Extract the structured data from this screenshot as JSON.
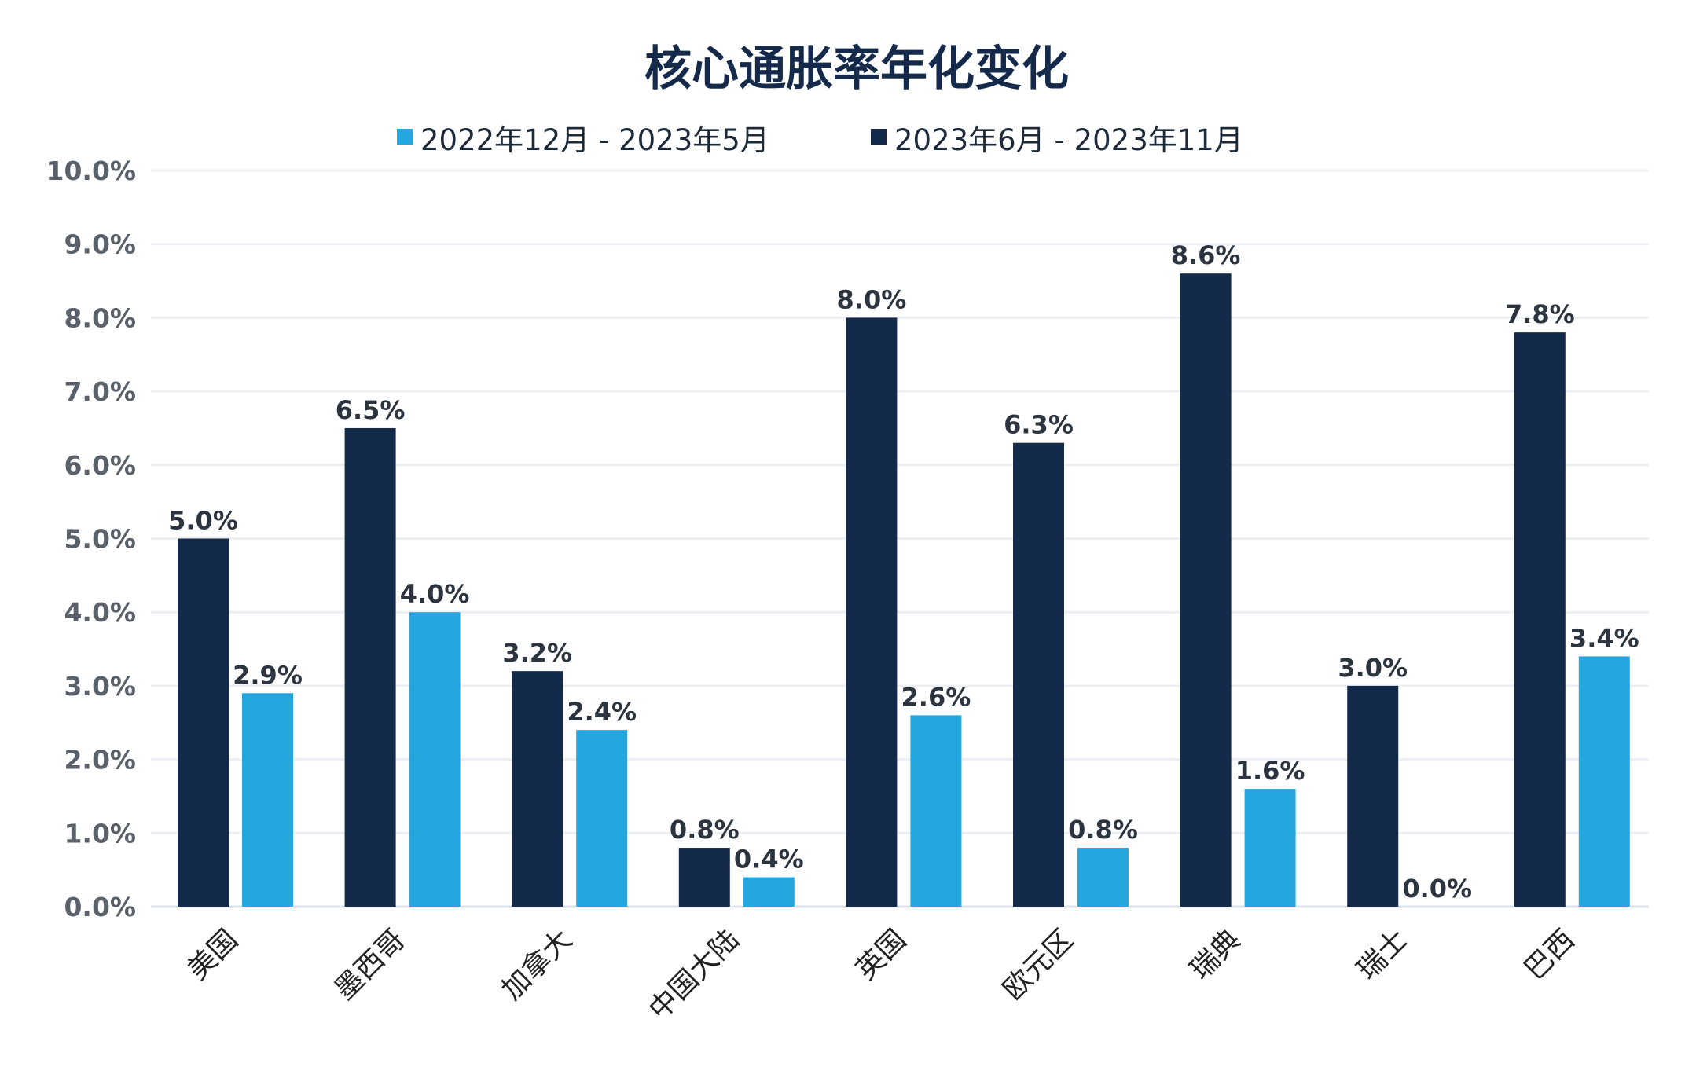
{
  "chart_data": {
    "type": "bar",
    "title": "核心通胀率年化变化",
    "categories": [
      "美国",
      "墨西哥",
      "加拿大",
      "中国大陆",
      "英国",
      "欧元区",
      "瑞典",
      "瑞士",
      "巴西"
    ],
    "series": [
      {
        "name": "2023年6月 - 2023年11月",
        "color": "#132a4a",
        "values": [
          5.0,
          6.5,
          3.2,
          0.8,
          8.0,
          6.3,
          8.6,
          3.0,
          7.8
        ],
        "labels": [
          "5.0%",
          "6.5%",
          "3.2%",
          "0.8%",
          "8.0%",
          "6.3%",
          "8.6%",
          "3.0%",
          "7.8%"
        ]
      },
      {
        "name": "2022年12月 - 2023年5月",
        "color": "#24a7df",
        "values": [
          2.9,
          4.0,
          2.4,
          0.4,
          2.6,
          0.8,
          1.6,
          0.0,
          3.4
        ],
        "labels": [
          "2.9%",
          "4.0%",
          "2.4%",
          "0.4%",
          "2.6%",
          "0.8%",
          "1.6%",
          "0.0%",
          "3.4%"
        ]
      }
    ],
    "legend_order": [
      "2022年12月 - 2023年5月",
      "2023年6月 - 2023年11月"
    ],
    "legend_placement": "top",
    "ylim": [
      0,
      10
    ],
    "yticks": [
      "0.0%",
      "1.0%",
      "2.0%",
      "3.0%",
      "4.0%",
      "5.0%",
      "6.0%",
      "7.0%",
      "8.0%",
      "9.0%",
      "10.0%"
    ],
    "grid": true,
    "xlabel": "",
    "ylabel": ""
  }
}
